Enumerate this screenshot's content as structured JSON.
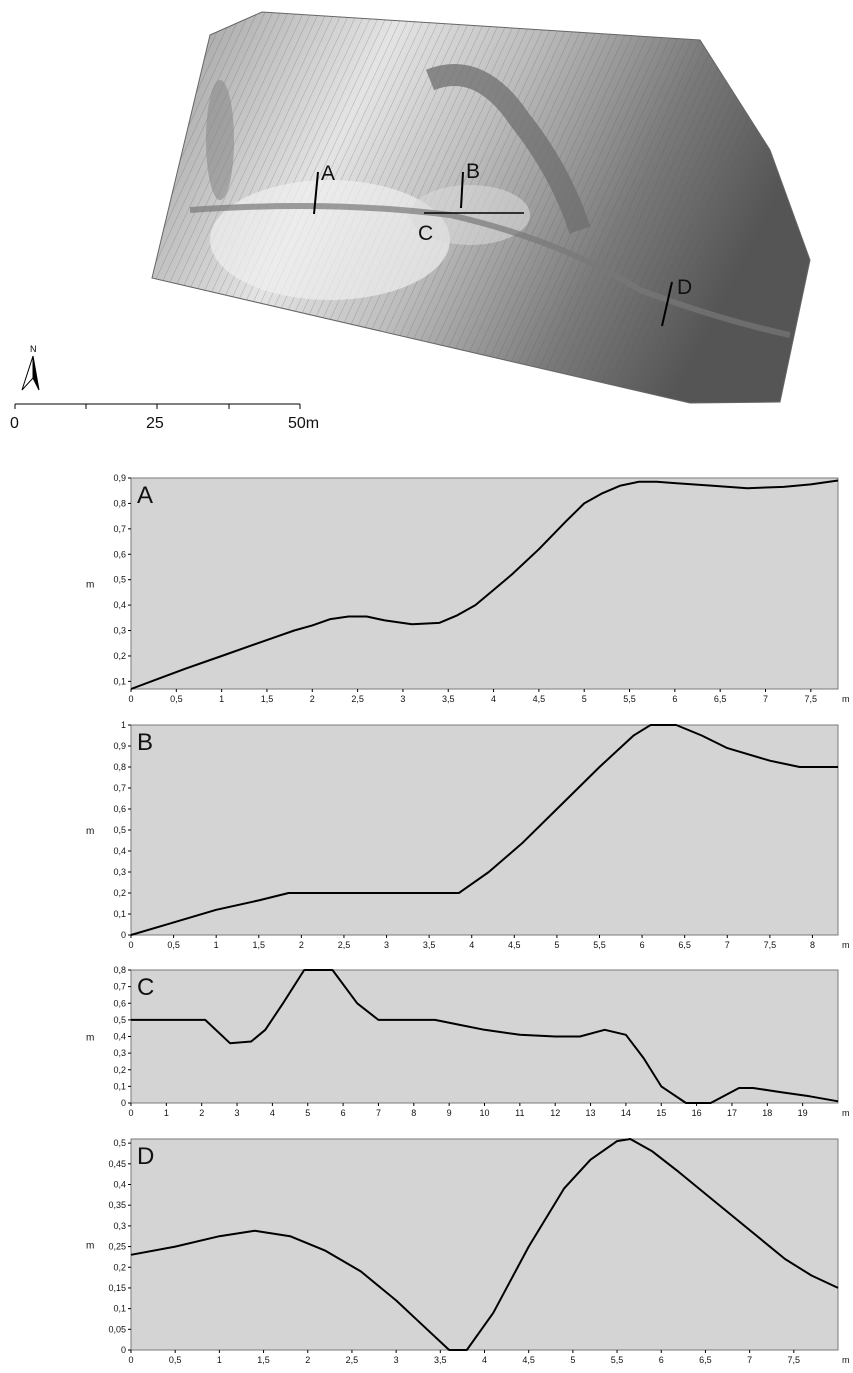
{
  "map": {
    "north_label": "N",
    "scale_labels": [
      "0",
      "25",
      "50m"
    ],
    "section_labels": [
      "A",
      "B",
      "C",
      "D"
    ]
  },
  "chart_data": [
    {
      "type": "line",
      "panel_label": "A",
      "ylabel": "m",
      "x_unit": "m",
      "xlim": [
        0,
        7.8
      ],
      "ylim": [
        0.07,
        0.9
      ],
      "xticks": [
        "0",
        "0,5",
        "1",
        "1,5",
        "2",
        "2,5",
        "3",
        "3,5",
        "4",
        "4,5",
        "5",
        "5,5",
        "6",
        "6,5",
        "7",
        "7,5"
      ],
      "yticks": [
        "0,1",
        "0,2",
        "0,3",
        "0,4",
        "0,5",
        "0,6",
        "0,7",
        "0,8",
        "0,9"
      ],
      "series": [
        {
          "x": [
            0,
            0.3,
            0.6,
            1.0,
            1.4,
            1.8,
            2.0,
            2.2,
            2.4,
            2.6,
            2.8,
            3.1,
            3.4,
            3.6,
            3.8,
            4.0,
            4.2,
            4.5,
            4.8,
            5.0,
            5.2,
            5.4,
            5.6,
            5.8,
            6.0,
            6.4,
            6.8,
            7.2,
            7.5,
            7.8
          ],
          "y": [
            0.07,
            0.11,
            0.15,
            0.2,
            0.25,
            0.3,
            0.32,
            0.345,
            0.355,
            0.355,
            0.34,
            0.325,
            0.33,
            0.36,
            0.4,
            0.46,
            0.52,
            0.62,
            0.73,
            0.8,
            0.84,
            0.87,
            0.885,
            0.885,
            0.88,
            0.87,
            0.86,
            0.865,
            0.875,
            0.89
          ]
        }
      ]
    },
    {
      "type": "line",
      "panel_label": "B",
      "ylabel": "m",
      "x_unit": "m",
      "xlim": [
        0,
        8.3
      ],
      "ylim": [
        0,
        1
      ],
      "xticks": [
        "0",
        "0,5",
        "1",
        "1,5",
        "2",
        "2,5",
        "3",
        "3,5",
        "4",
        "4,5",
        "5",
        "5,5",
        "6",
        "6,5",
        "7",
        "7,5",
        "8"
      ],
      "yticks": [
        "0",
        "0,1",
        "0,2",
        "0,3",
        "0,4",
        "0,5",
        "0,6",
        "0,7",
        "0,8",
        "0,9",
        "1"
      ],
      "series": [
        {
          "x": [
            0,
            0.5,
            1.0,
            1.5,
            1.85,
            2.5,
            3.0,
            3.5,
            3.85,
            4.2,
            4.6,
            5.0,
            5.5,
            5.9,
            6.1,
            6.4,
            6.7,
            7.0,
            7.5,
            7.85,
            8.3
          ],
          "y": [
            0,
            0.06,
            0.12,
            0.165,
            0.2,
            0.2,
            0.2,
            0.2,
            0.2,
            0.3,
            0.44,
            0.6,
            0.8,
            0.95,
            1.0,
            1.0,
            0.95,
            0.89,
            0.83,
            0.8,
            0.8
          ]
        }
      ]
    },
    {
      "type": "line",
      "panel_label": "C",
      "ylabel": "m",
      "x_unit": "m",
      "xlim": [
        0,
        20
      ],
      "ylim": [
        0,
        0.8
      ],
      "xticks": [
        "0",
        "1",
        "2",
        "3",
        "4",
        "5",
        "6",
        "7",
        "8",
        "9",
        "10",
        "11",
        "12",
        "13",
        "14",
        "15",
        "16",
        "17",
        "18",
        "19"
      ],
      "yticks": [
        "0",
        "0,1",
        "0,2",
        "0,3",
        "0,4",
        "0,5",
        "0,6",
        "0,7",
        "0,8"
      ],
      "series": [
        {
          "x": [
            0,
            2.1,
            2.8,
            3.4,
            3.8,
            4.3,
            4.9,
            5.7,
            6.4,
            7.0,
            8.0,
            8.6,
            9.3,
            10.0,
            11.0,
            12.0,
            12.7,
            13.4,
            14.0,
            14.5,
            15.0,
            15.7,
            16.4,
            17.2,
            17.6,
            18.4,
            19.2,
            20
          ],
          "y": [
            0.5,
            0.5,
            0.36,
            0.37,
            0.44,
            0.6,
            0.8,
            0.8,
            0.6,
            0.5,
            0.5,
            0.5,
            0.47,
            0.44,
            0.41,
            0.4,
            0.4,
            0.44,
            0.41,
            0.27,
            0.1,
            0.0,
            0.0,
            0.09,
            0.09,
            0.065,
            0.04,
            0.01
          ]
        }
      ]
    },
    {
      "type": "line",
      "panel_label": "D",
      "ylabel": "m",
      "x_unit": "m",
      "xlim": [
        0,
        8
      ],
      "ylim": [
        0,
        0.51
      ],
      "xticks": [
        "0",
        "0,5",
        "1",
        "1,5",
        "2",
        "2,5",
        "3",
        "3,5",
        "4",
        "4,5",
        "5",
        "5,5",
        "6",
        "6,5",
        "7",
        "7,5"
      ],
      "yticks": [
        "0",
        "0,05",
        "0,1",
        "0,15",
        "0,2",
        "0,25",
        "0,3",
        "0,35",
        "0,4",
        "0,45",
        "0,5"
      ],
      "series": [
        {
          "x": [
            0,
            0.5,
            1.0,
            1.4,
            1.8,
            2.2,
            2.6,
            3.0,
            3.3,
            3.6,
            3.8,
            4.1,
            4.5,
            4.9,
            5.2,
            5.5,
            5.65,
            5.9,
            6.2,
            6.6,
            7.0,
            7.4,
            7.7,
            8.0
          ],
          "y": [
            0.23,
            0.25,
            0.275,
            0.288,
            0.275,
            0.24,
            0.19,
            0.12,
            0.06,
            0.0,
            0.0,
            0.09,
            0.25,
            0.39,
            0.46,
            0.505,
            0.51,
            0.48,
            0.43,
            0.36,
            0.29,
            0.22,
            0.18,
            0.15
          ]
        }
      ]
    }
  ]
}
